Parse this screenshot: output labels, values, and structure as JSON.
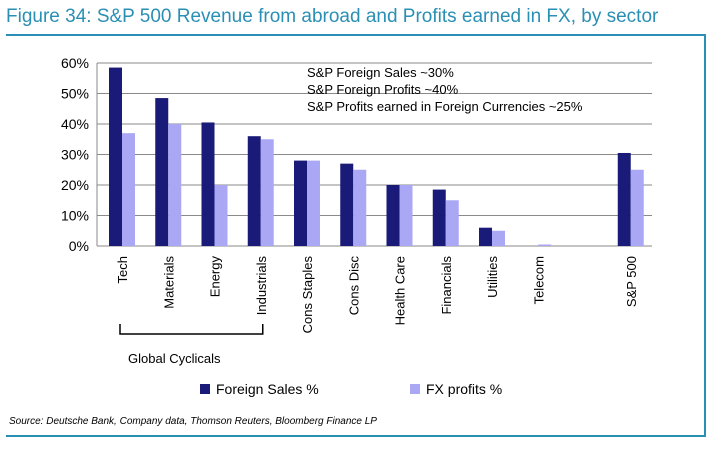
{
  "title": "Figure 34: S&P 500 Revenue from abroad and Profits earned in FX, by sector",
  "notes": [
    "S&P Foreign Sales ~30%",
    "S&P Foreign Profits ~40%",
    "S&P Profits earned in Foreign Currencies ~25%"
  ],
  "group_label": "Global Cyclicals",
  "source": "Source: Deutsche Bank, Company data, Thomson Reuters, Bloomberg Finance LP",
  "colors": {
    "foreign_sales": "#1a1a78",
    "fx_profits": "#aaa8f5",
    "accent": "#2a8fb4"
  },
  "chart_data": {
    "type": "bar",
    "title": "S&P 500 Revenue from abroad and Profits earned in FX, by sector",
    "categories": [
      "Tech",
      "Materials",
      "Energy",
      "Industrials",
      "Cons Staples",
      "Cons Disc",
      "Health Care",
      "Financials",
      "Utilities",
      "Telecom",
      "",
      "S&P 500"
    ],
    "series": [
      {
        "name": "Foreign Sales %",
        "values": [
          58.5,
          48.5,
          40.5,
          36,
          28,
          27,
          20,
          18.5,
          6,
          0,
          null,
          30.5
        ]
      },
      {
        "name": "FX profits %",
        "values": [
          37,
          40,
          20,
          35,
          28,
          25,
          20,
          15,
          5,
          0.5,
          null,
          25
        ]
      }
    ],
    "ylim": [
      0,
      60
    ],
    "yticks": [
      "0%",
      "10%",
      "20%",
      "30%",
      "40%",
      "50%",
      "60%"
    ],
    "grid": true,
    "xlabel": "",
    "ylabel": ""
  }
}
